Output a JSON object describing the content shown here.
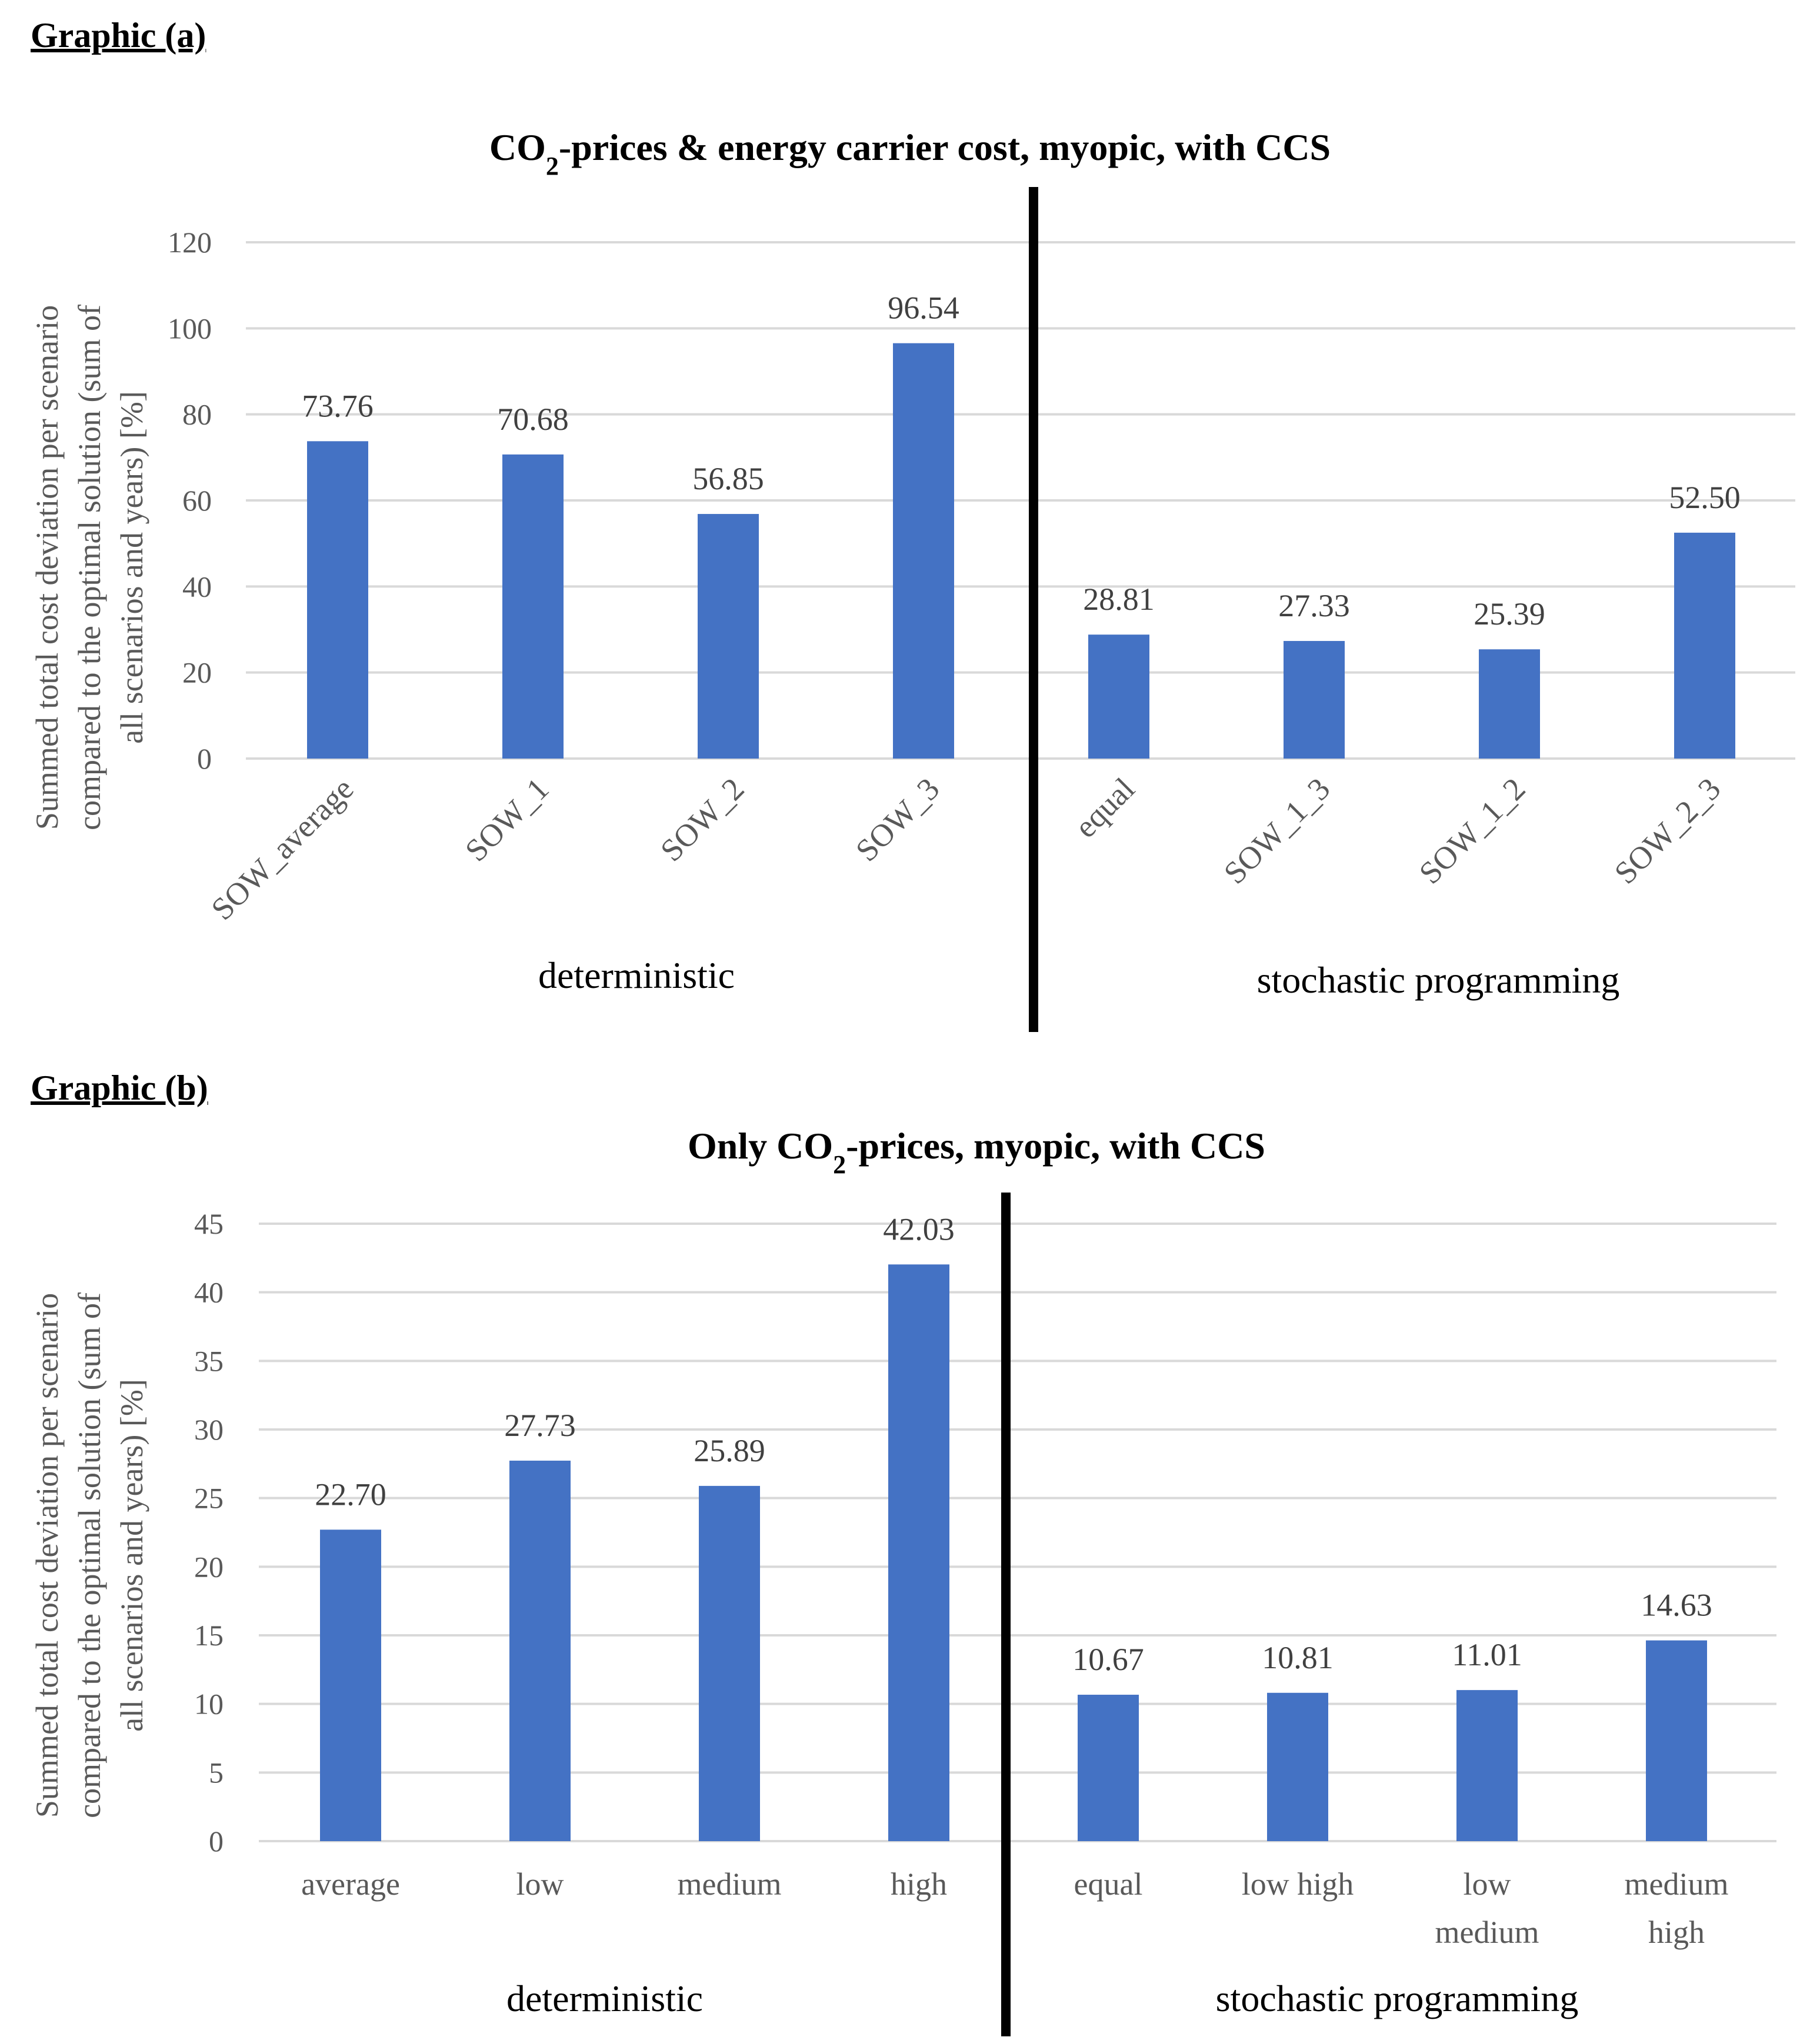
{
  "chart_data": [
    {
      "type": "bar",
      "heading": "Graphic (a)",
      "title_parts": [
        "CO",
        "2",
        "-prices & energy carrier cost, myopic, with CCS"
      ],
      "ylabel_lines": [
        "Summed total cost deviation per scenario",
        "compared to the optimal solution (sum of",
        "all scenarios and years) [%]"
      ],
      "ylim": [
        0,
        120
      ],
      "yticks": [
        0,
        20,
        40,
        60,
        80,
        100,
        120
      ],
      "categories": [
        "SOW_average",
        "SOW_1",
        "SOW_2",
        "SOW_3",
        "equal",
        "SOW_1_3",
        "SOW_1_2",
        "SOW_2_3"
      ],
      "values": [
        73.76,
        70.68,
        56.85,
        96.54,
        28.81,
        27.33,
        25.39,
        52.5
      ],
      "value_labels": [
        "73.76",
        "70.68",
        "56.85",
        "96.54",
        "28.81",
        "27.33",
        "25.39",
        "52.50"
      ],
      "groups": [
        "deterministic",
        "stochastic programming"
      ],
      "bar_color": "#4472C4"
    },
    {
      "type": "bar",
      "heading": "Graphic (b)",
      "title_parts": [
        "Only CO",
        "2",
        "-prices, myopic, with CCS"
      ],
      "ylabel_lines": [
        "Summed total cost deviation per scenario",
        "compared to the optimal solution (sum of",
        "all scenarios and years) [%]"
      ],
      "ylim": [
        0,
        45
      ],
      "yticks": [
        0,
        5,
        10,
        15,
        20,
        25,
        30,
        35,
        40,
        45
      ],
      "categories": [
        "average",
        "low",
        "medium",
        "high",
        "equal",
        "low high",
        "low medium",
        "medium high"
      ],
      "values": [
        22.7,
        27.73,
        25.89,
        42.03,
        10.67,
        10.81,
        11.01,
        14.63
      ],
      "value_labels": [
        "22.70",
        "27.73",
        "25.89",
        "42.03",
        "10.67",
        "10.81",
        "11.01",
        "14.63"
      ],
      "groups": [
        "deterministic",
        "stochastic programming"
      ],
      "bar_color": "#4472C4"
    }
  ]
}
